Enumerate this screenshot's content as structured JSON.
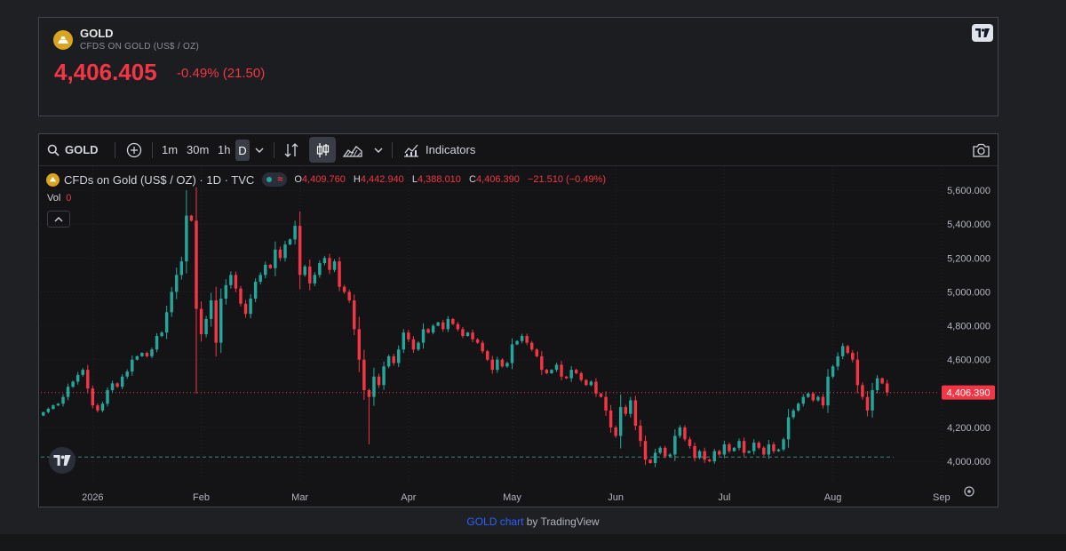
{
  "header": {
    "symbol": "GOLD",
    "description": "CFDS ON GOLD (US$ / OZ)",
    "price": "4,406.405",
    "change": "-0.49% (21.50)"
  },
  "toolbar": {
    "symbol": "GOLD",
    "intervals": [
      "1m",
      "30m",
      "1h"
    ],
    "active_interval": "D",
    "indicators_label": "Indicators"
  },
  "legend": {
    "title": "CFDs on Gold (US$ / OZ) · 1D · TVC",
    "o_label": "O",
    "o": "4,409.760",
    "h_label": "H",
    "h": "4,442.940",
    "l_label": "L",
    "l": "4,388.010",
    "c_label": "C",
    "c": "4,406.390",
    "chg": "−21.510 (−0.49%)",
    "vol_label": "Vol",
    "vol_value": "0"
  },
  "footer": {
    "link": "GOLD chart",
    "suffix": " by TradingView"
  },
  "colors": {
    "up": "#26a69a",
    "down": "#f23645",
    "background": "#141416",
    "grid": "#23252b"
  },
  "chart_data": {
    "type": "candlestick",
    "y_ticks": [
      "5,600.000",
      "5,400.000",
      "5,200.000",
      "5,000.000",
      "4,800.000",
      "4,600.000",
      "4,400.000",
      "4,200.000",
      "4,000.000"
    ],
    "y_tick_values": [
      5600,
      5400,
      5200,
      5000,
      4800,
      4600,
      4400,
      4200,
      4000
    ],
    "ylim": [
      3885,
      5700
    ],
    "x_ticks": [
      {
        "label": "2026",
        "index": 10
      },
      {
        "label": "Feb",
        "index": 32
      },
      {
        "label": "Mar",
        "index": 52
      },
      {
        "label": "Apr",
        "index": 74
      },
      {
        "label": "May",
        "index": 95
      },
      {
        "label": "Jun",
        "index": 116
      },
      {
        "label": "Jul",
        "index": 138
      },
      {
        "label": "Aug",
        "index": 160
      },
      {
        "label": "Sep",
        "index": 182
      }
    ],
    "last_price": "4,406.390",
    "last_value": 4406.39,
    "reference_level": 4025,
    "closes": [
      4290,
      4310,
      4330,
      4340,
      4380,
      4440,
      4470,
      4510,
      4540,
      4430,
      4330,
      4300,
      4340,
      4420,
      4460,
      4440,
      4500,
      4530,
      4600,
      4620,
      4640,
      4620,
      4660,
      4740,
      4760,
      4880,
      5000,
      5100,
      5180,
      5450,
      5420,
      4900,
      4750,
      4840,
      4950,
      4700,
      4960,
      5040,
      5100,
      5020,
      4930,
      4870,
      4960,
      5060,
      5100,
      5160,
      5140,
      5250,
      5200,
      5280,
      5310,
      5390,
      5100,
      5150,
      5050,
      5100,
      5170,
      5200,
      5130,
      5180,
      5030,
      5000,
      4950,
      4780,
      4600,
      4420,
      4380,
      4500,
      4450,
      4560,
      4620,
      4580,
      4660,
      4760,
      4720,
      4660,
      4700,
      4780,
      4760,
      4800,
      4820,
      4780,
      4840,
      4810,
      4780,
      4740,
      4760,
      4720,
      4700,
      4650,
      4600,
      4540,
      4600,
      4560,
      4580,
      4690,
      4710,
      4740,
      4700,
      4660,
      4620,
      4540,
      4520,
      4540,
      4570,
      4500,
      4490,
      4540,
      4520,
      4480,
      4450,
      4470,
      4400,
      4380,
      4300,
      4200,
      4150,
      4320,
      4280,
      4360,
      4210,
      4120,
      4010,
      3990,
      4050,
      4080,
      4030,
      4040,
      4150,
      4200,
      4130,
      4090,
      4020,
      4060,
      4010,
      4000,
      4060,
      4040,
      4100,
      4060,
      4080,
      4120,
      4050,
      4060,
      4110,
      4080,
      4040,
      4100,
      4060,
      4070,
      4130,
      4260,
      4300,
      4340,
      4380,
      4400,
      4360,
      4380,
      4330,
      4500,
      4560,
      4620,
      4680,
      4640,
      4600,
      4450,
      4380,
      4300,
      4420,
      4490,
      4460,
      4406
    ]
  }
}
